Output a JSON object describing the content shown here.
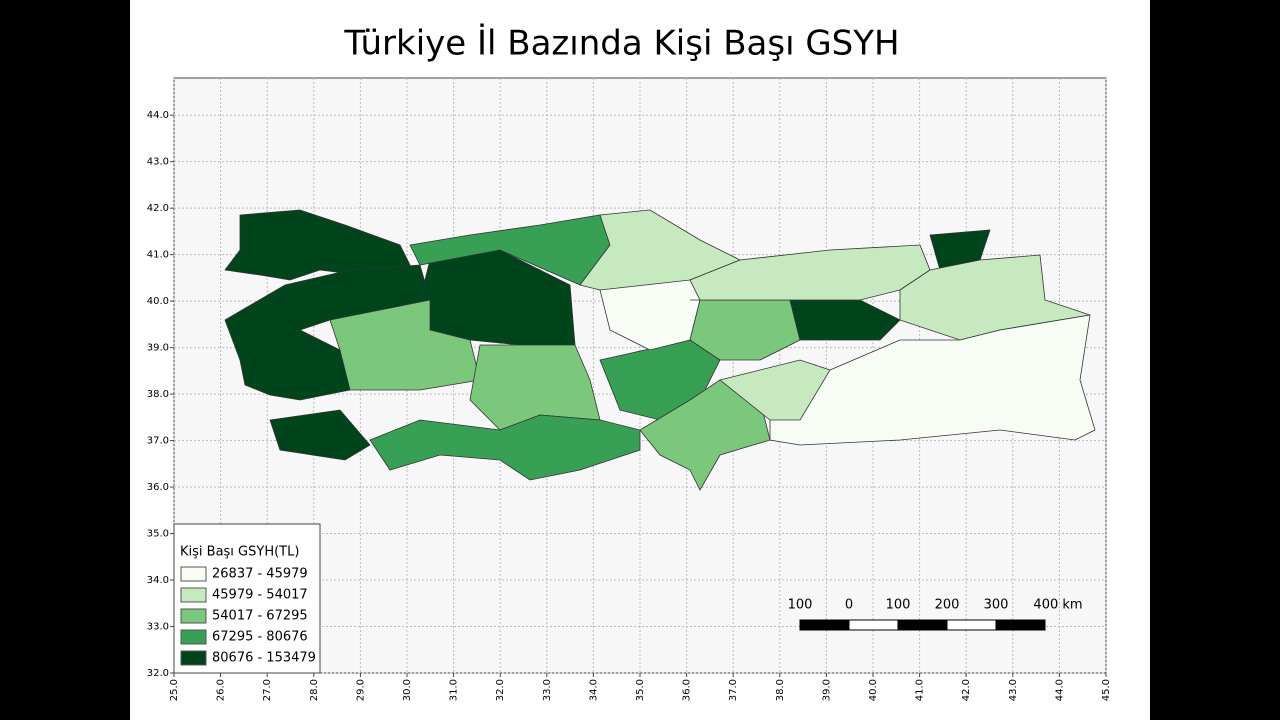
{
  "title": "Türkiye İl Bazında Kişi Başı GSYH",
  "map": {
    "xlim": [
      25,
      45
    ],
    "ylim": [
      32,
      44.8
    ],
    "grid": true,
    "xticks": [
      {
        "value": 25,
        "label": "25.0"
      },
      {
        "value": 26,
        "label": "26.0"
      },
      {
        "value": 27,
        "label": "27.0"
      },
      {
        "value": 28,
        "label": "28.0"
      },
      {
        "value": 29,
        "label": "29.0"
      },
      {
        "value": 30,
        "label": "30.0"
      },
      {
        "value": 31,
        "label": "31.0"
      },
      {
        "value": 32,
        "label": "32.0"
      },
      {
        "value": 33,
        "label": "33.0"
      },
      {
        "value": 34,
        "label": "34.0"
      },
      {
        "value": 35,
        "label": "35.0"
      },
      {
        "value": 36,
        "label": "36.0"
      },
      {
        "value": 37,
        "label": "37.0"
      },
      {
        "value": 38,
        "label": "38.0"
      },
      {
        "value": 39,
        "label": "39.0"
      },
      {
        "value": 40,
        "label": "40.0"
      },
      {
        "value": 41,
        "label": "41.0"
      },
      {
        "value": 42,
        "label": "42.0"
      },
      {
        "value": 43,
        "label": "43.0"
      },
      {
        "value": 44,
        "label": "44.0"
      },
      {
        "value": 45,
        "label": "45.0"
      }
    ],
    "yticks": [
      {
        "value": 32,
        "label": "32.0"
      },
      {
        "value": 33,
        "label": "33.0"
      },
      {
        "value": 34,
        "label": "34.0"
      },
      {
        "value": 35,
        "label": "35.0"
      },
      {
        "value": 36,
        "label": "36.0"
      },
      {
        "value": 37,
        "label": "37.0"
      },
      {
        "value": 38,
        "label": "38.0"
      },
      {
        "value": 39,
        "label": "39.0"
      },
      {
        "value": 40,
        "label": "40.0"
      },
      {
        "value": 41,
        "label": "41.0"
      },
      {
        "value": 42,
        "label": "42.0"
      },
      {
        "value": 43,
        "label": "43.0"
      },
      {
        "value": 44,
        "label": "44.0"
      }
    ]
  },
  "legend": {
    "title": "Kişi Başı GSYH(TL)",
    "position": "lower left",
    "items": [
      {
        "label": "26837 - 45979",
        "color": "#f7fcf5"
      },
      {
        "label": "45979 - 54017",
        "color": "#c7e9c0"
      },
      {
        "label": "54017 - 67295",
        "color": "#7bc87c"
      },
      {
        "label": "67295 - 80676",
        "color": "#38a055"
      },
      {
        "label": "80676 - 153479",
        "color": "#00441b"
      }
    ]
  },
  "scale_bar": {
    "labels": [
      "100",
      "0",
      "100",
      "200",
      "300",
      "400 km"
    ]
  }
}
